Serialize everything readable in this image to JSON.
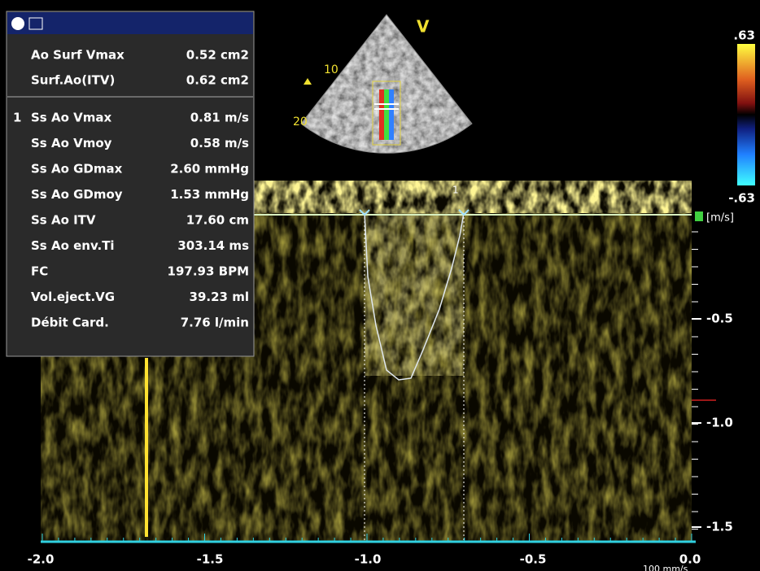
{
  "measurements": {
    "surface": [
      {
        "label": "Ao Surf Vmax",
        "value": "0.52 cm2"
      },
      {
        "label": "Surf.Ao(ITV)",
        "value": "0.62 cm2"
      }
    ],
    "doppler_index": "1",
    "doppler": [
      {
        "label": "Ss Ao Vmax",
        "value": "0.81 m/s"
      },
      {
        "label": "Ss Ao Vmoy",
        "value": "0.58 m/s"
      },
      {
        "label": "Ss Ao GDmax",
        "value": "2.60 mmHg"
      },
      {
        "label": "Ss Ao GDmoy",
        "value": "1.53 mmHg"
      },
      {
        "label": "Ss Ao ITV",
        "value": "17.60 cm"
      },
      {
        "label": "Ss Ao env.Ti",
        "value": "303.14 ms"
      },
      {
        "label": "FC",
        "value": "197.93 BPM"
      },
      {
        "label": "Vol.eject.VG",
        "value": "39.23 ml"
      },
      {
        "label": "Débit Card.",
        "value": "7.76 l/min"
      }
    ]
  },
  "sector": {
    "mode": "V",
    "depth_labels": [
      "10",
      "20"
    ]
  },
  "color_scale": {
    "max": ".63",
    "min": "-.63"
  },
  "velocity_axis": {
    "unit": "[m/s]",
    "labels": [
      "-0.5",
      "-1.0",
      "-1.5"
    ]
  },
  "time_axis": {
    "labels": [
      "-2.0",
      "-1.5",
      "-1.0",
      "-0.5",
      "0.0"
    ],
    "sweep": "100 mm/s"
  },
  "cursor_label": "1"
}
